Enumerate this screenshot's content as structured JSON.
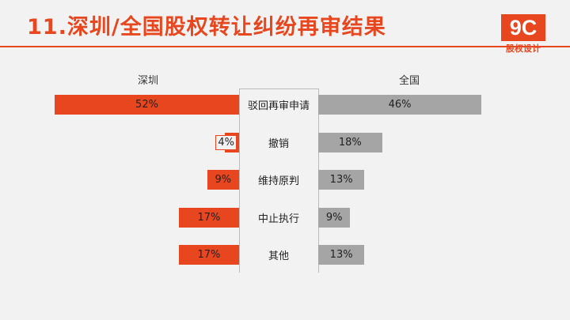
{
  "header": {
    "title": "11.深圳/全国股权转让纠纷再审结果",
    "logo_text": "9C",
    "logo_subtitle": "股权设计"
  },
  "colors": {
    "accent": "#e8461e",
    "secondary": "#a5a5a5",
    "background": "#f2f2f2"
  },
  "chart_data": {
    "type": "bar",
    "orientation": "horizontal-diverging",
    "categories": [
      "驳回再审申请",
      "撤销",
      "维持原判",
      "中止执行",
      "其他"
    ],
    "series": [
      {
        "name": "深圳",
        "values": [
          52,
          4,
          9,
          17,
          17
        ],
        "labels": [
          "52%",
          "4%",
          "9%",
          "17%",
          "17%"
        ],
        "color": "#e8461e"
      },
      {
        "name": "全国",
        "values": [
          46,
          18,
          13,
          9,
          13
        ],
        "labels": [
          "46%",
          "18%",
          "13%",
          "9%",
          "13%"
        ],
        "color": "#a5a5a5"
      }
    ],
    "unit": "%",
    "xlim": [
      0,
      52
    ]
  }
}
